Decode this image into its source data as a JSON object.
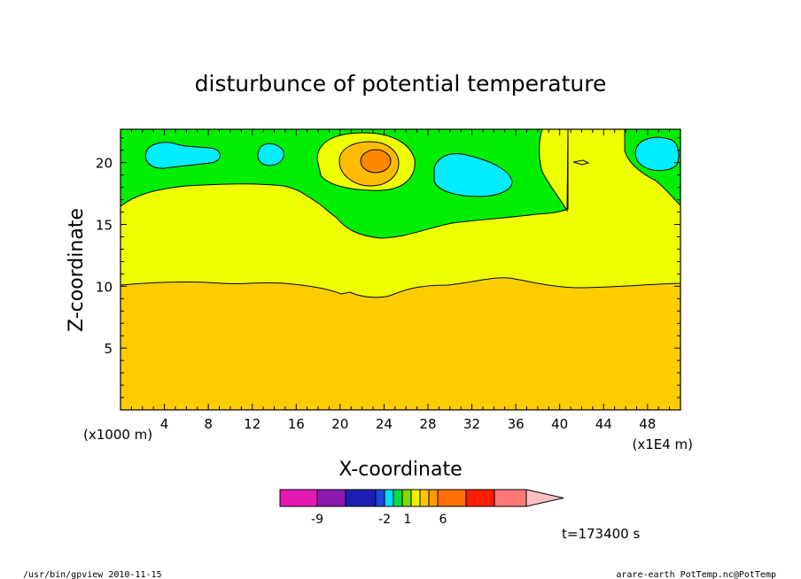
{
  "chart_data": {
    "type": "contour",
    "title": "disturbunce of potential temperature",
    "xlabel": "X-coordinate",
    "ylabel": "Z-coordinate",
    "x_unit_left": "(x1000 m)",
    "x_unit_right": "(x1E4 m)",
    "x_ticks": [
      "4",
      "8",
      "12",
      "16",
      "20",
      "24",
      "28",
      "32",
      "36",
      "40",
      "44",
      "48"
    ],
    "y_ticks": [
      "5",
      "10",
      "15",
      "20"
    ],
    "xlim": [
      0,
      51
    ],
    "ylim": [
      0,
      22.7
    ],
    "time_label": "t=173400 s",
    "colorbar": {
      "colors": [
        "#e619b4",
        "#8c19b4",
        "#1e1eb4",
        "#1e46dc",
        "#00dcff",
        "#00dc46",
        "#7ddc00",
        "#f0f000",
        "#ffc800",
        "#ff9b00",
        "#ff6e00",
        "#ff1e00",
        "#ff7878",
        "#ffbfbf"
      ],
      "labels": [
        "-9",
        "-2",
        "1",
        "6"
      ]
    },
    "field_colors": {
      "background": "#ffcc00",
      "positive_small": "#eeff00",
      "negative_small": "#00ee00",
      "negative_mid": "#00eeff",
      "positive_mid": "#ffbb00",
      "positive_high": "#ff8800"
    }
  },
  "footer": {
    "left": "/usr/bin/gpview   2010-11-15",
    "right": "arare-earth_PotTemp.nc@PotTemp"
  }
}
